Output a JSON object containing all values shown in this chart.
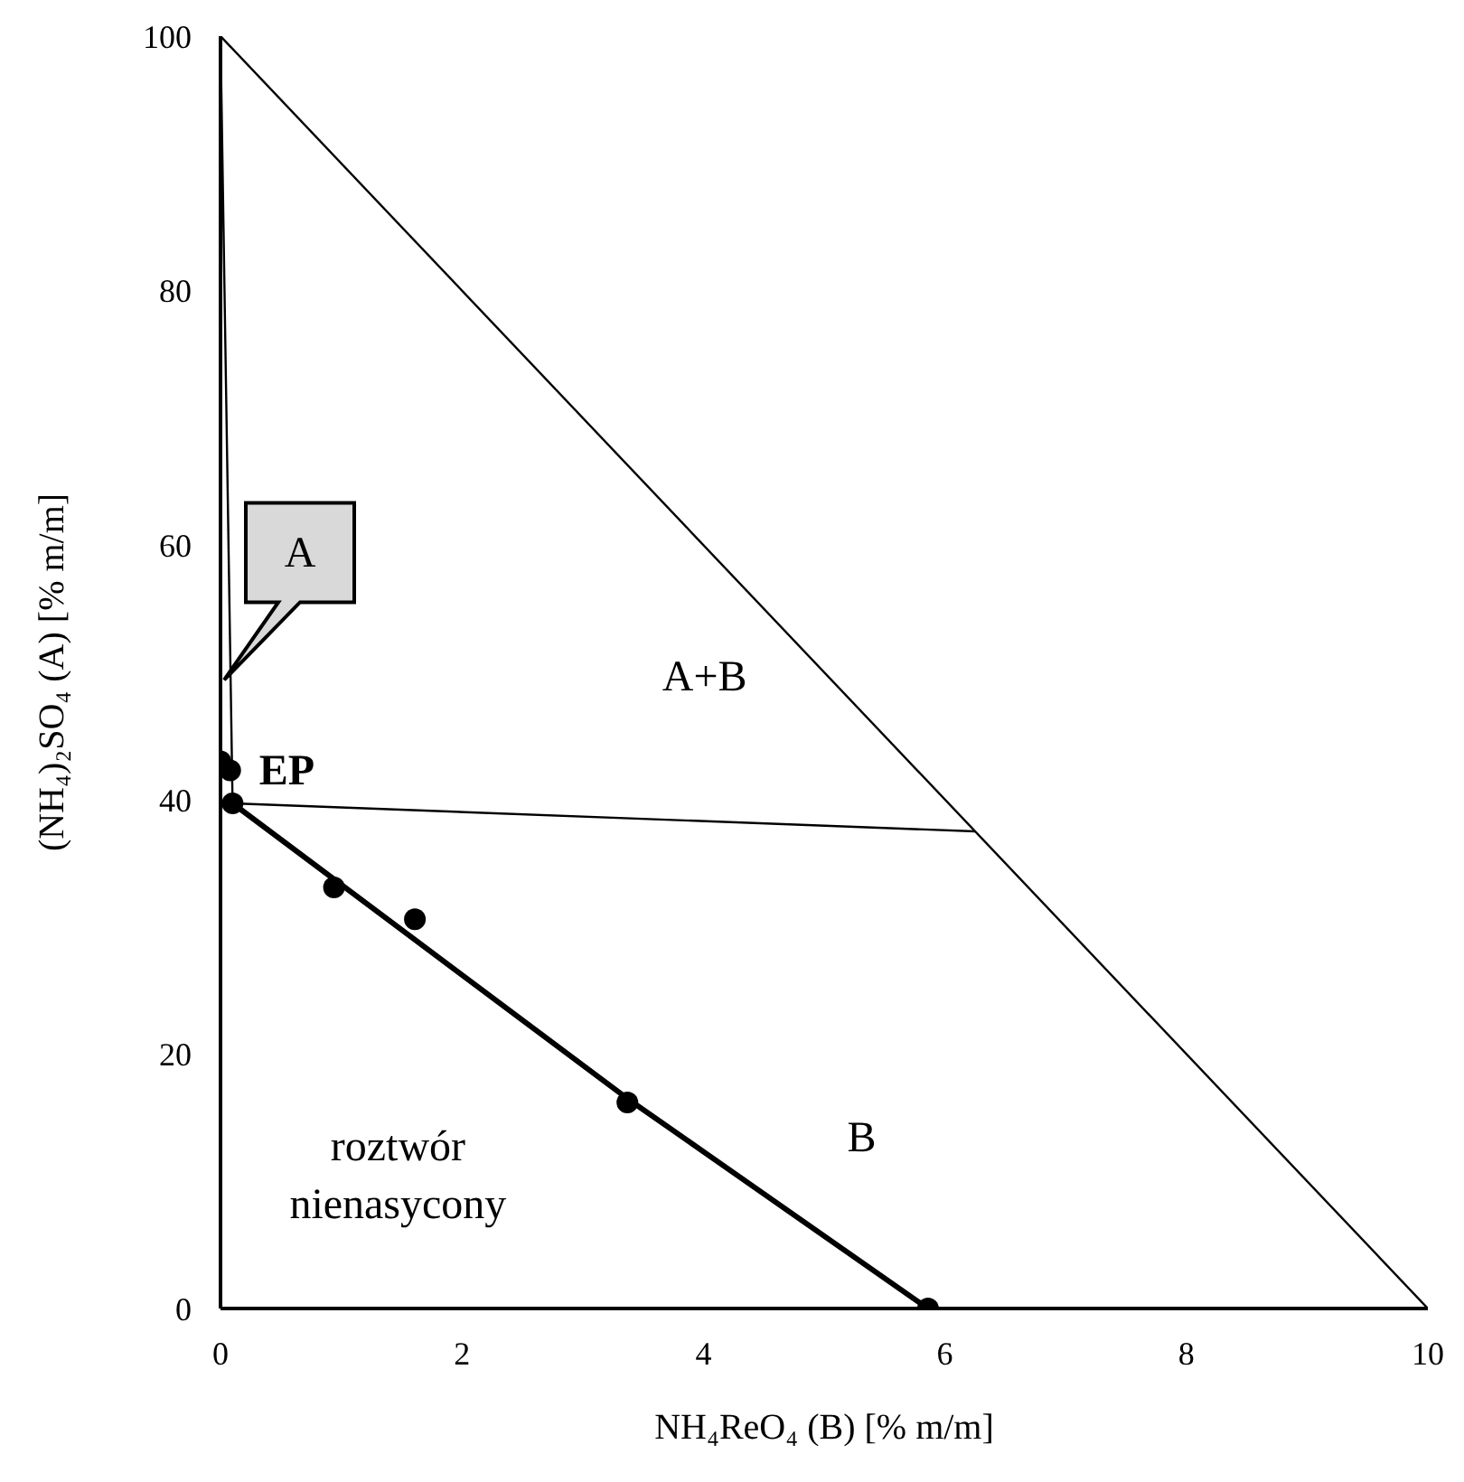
{
  "chart_data": {
    "type": "scatter",
    "xlabel": "NH₄ReO₄ (B) [% m/m]",
    "ylabel": "(NH₄)₂SO₄ (A) [% m/m]",
    "xlim": [
      0,
      10
    ],
    "xticks": [
      0,
      2,
      4,
      6,
      8,
      10
    ],
    "ylim": [
      0,
      100
    ],
    "yticks": [
      0,
      20,
      40,
      60,
      80,
      100
    ],
    "series": [
      {
        "color": "#000000",
        "marker": "circle",
        "x": [
          0,
          0.08,
          0.1,
          0.94,
          1.61,
          3.37,
          5.86
        ],
        "values": [
          43,
          42.3,
          39.7,
          33.1,
          30.6,
          16.2,
          0
        ]
      },
      {
        "type": "line",
        "color": "#000000",
        "x": [
          0.1,
          3.37,
          5.86
        ],
        "values": [
          39.7,
          16.5,
          0
        ]
      },
      {
        "type": "line",
        "color": "#000000",
        "x": [
          0,
          10
        ],
        "values": [
          100,
          0
        ]
      },
      {
        "type": "line",
        "color": "#000000",
        "x": [
          0,
          0.1
        ],
        "values": [
          100,
          39.7
        ]
      },
      {
        "type": "line",
        "color": "#000000",
        "x": [
          0.1,
          6.25
        ],
        "values": [
          39.7,
          37.5
        ]
      }
    ],
    "annotations": [
      {
        "text": "A",
        "x": 0.03,
        "y": 49.4
      },
      {
        "text": "EP",
        "x": 0.08,
        "y": 42.3
      },
      "A+B",
      "B",
      "roztwór nienasycony"
    ]
  }
}
